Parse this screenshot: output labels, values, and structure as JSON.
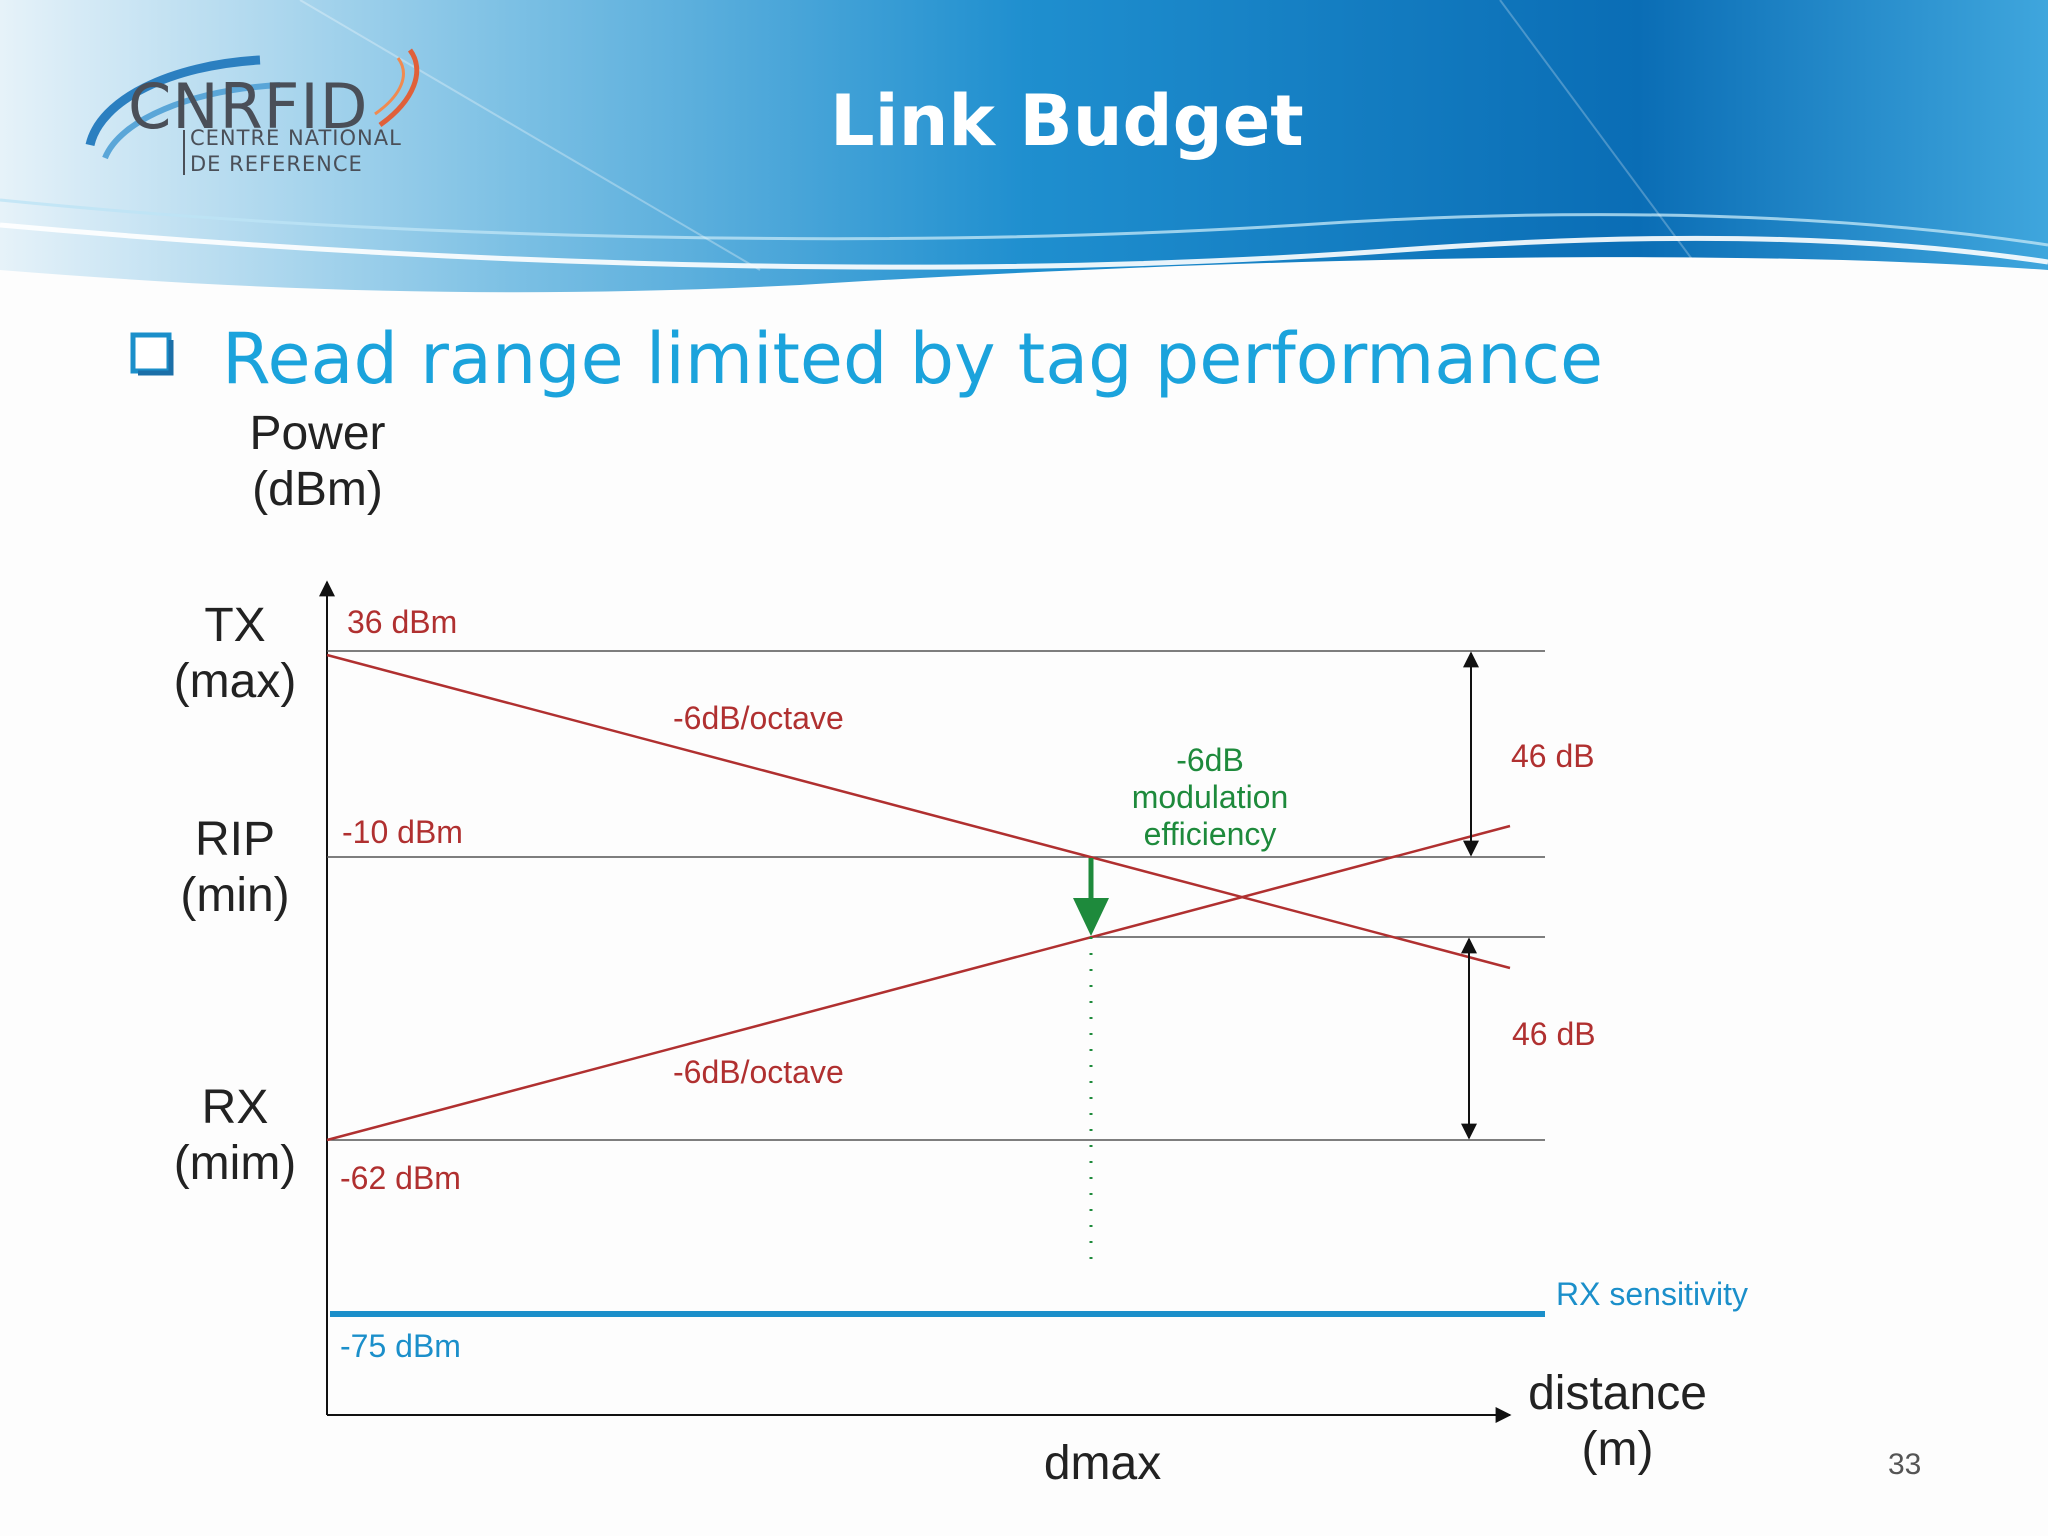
{
  "header": {
    "logo_text": "CNRFID",
    "logo_line1": "CENTRE NATIONAL",
    "logo_line2": "DE REFERENCE",
    "title": "Link Budget"
  },
  "bullet": {
    "text": "Read range limited by tag performance"
  },
  "diagram": {
    "y_axis_label_1": "Power",
    "y_axis_label_2": "(dBm)",
    "x_axis_label_1": "distance",
    "x_axis_label_2": "(m)",
    "x_marker": "dmax",
    "levels": [
      {
        "name1": "TX",
        "name2": "(max)",
        "value": "36 dBm"
      },
      {
        "name1": "RIP",
        "name2": "(min)",
        "value": "-10 dBm"
      },
      {
        "name1": "RX",
        "name2": "(mim)",
        "value": "-62 dBm"
      }
    ],
    "sensitivity_value": "-75 dBm",
    "sensitivity_label": "RX sensitivity",
    "slope_upper": "-6dB/octave",
    "slope_lower": "-6dB/octave",
    "modulation_1": "-6dB",
    "modulation_2": "modulation",
    "modulation_3": "efficiency",
    "gap_upper": "46 dB",
    "gap_lower": "46 dB",
    "colors": {
      "red": "#b03030",
      "blue": "#1b8fca",
      "green": "#1e8a3c"
    }
  },
  "page_number": "33"
}
